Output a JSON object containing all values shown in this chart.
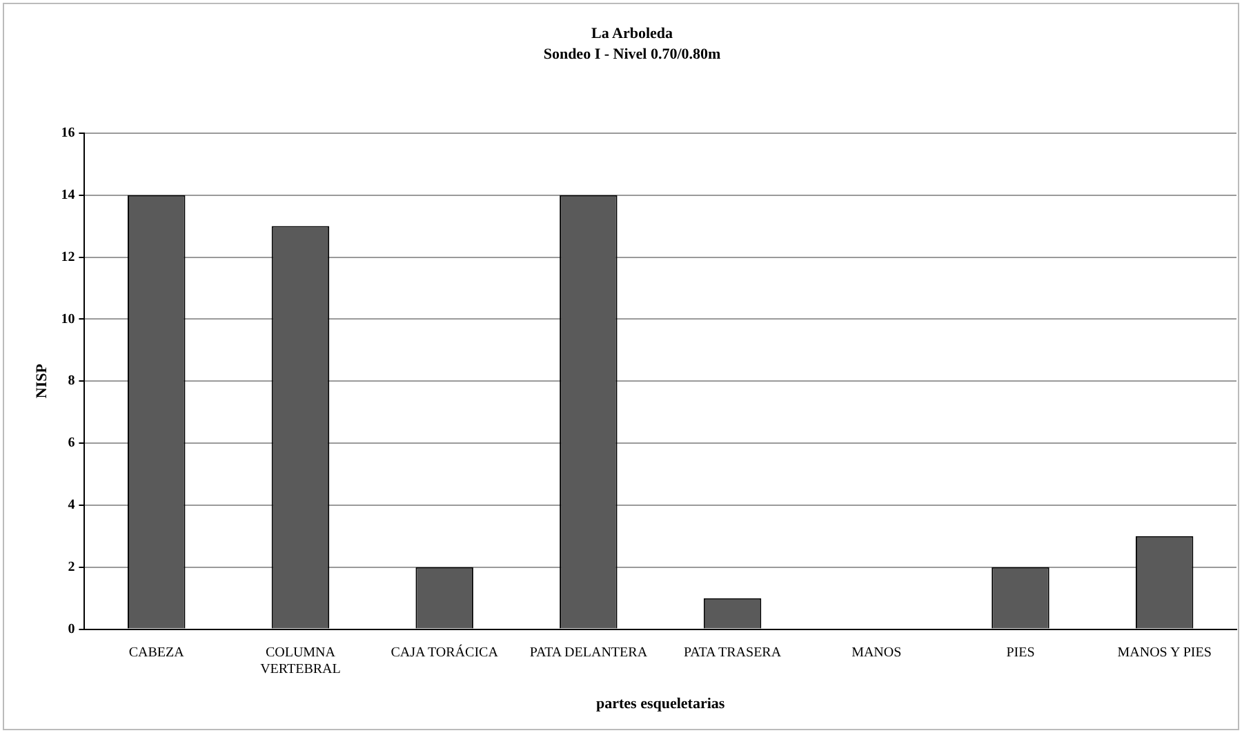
{
  "chart_data": {
    "type": "bar",
    "title": "La Arboleda",
    "subtitle": "Sondeo I - Nivel 0.70/0.80m",
    "xlabel": "partes esqueletarias",
    "ylabel": "NISP",
    "categories": [
      "CABEZA",
      "COLUMNA VERTEBRAL",
      "CAJA TORÁCICA",
      "PATA DELANTERA",
      "PATA TRASERA",
      "MANOS",
      "PIES",
      "MANOS Y PIES"
    ],
    "values": [
      14,
      13,
      2,
      14,
      1,
      0,
      2,
      3
    ],
    "color": "#5a5a5a",
    "ylim": [
      0,
      16
    ],
    "yticks": [
      0,
      2,
      4,
      6,
      8,
      10,
      12,
      14,
      16
    ],
    "grid": "y",
    "legend": false
  }
}
